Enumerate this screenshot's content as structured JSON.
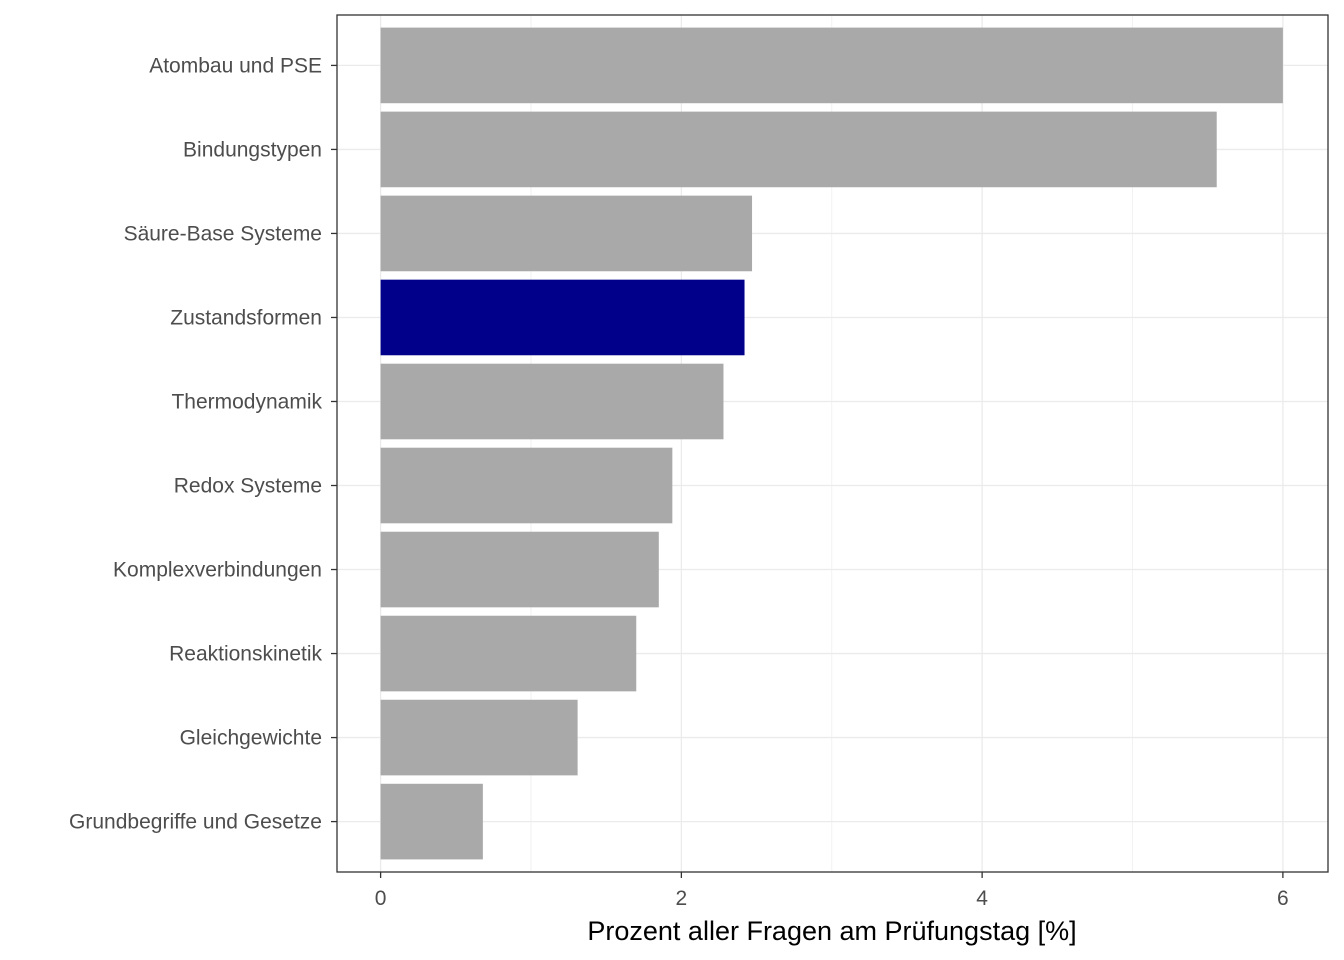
{
  "chart_data": {
    "type": "bar",
    "orientation": "horizontal",
    "categories": [
      "Atombau und PSE",
      "Bindungstypen",
      "Säure-Base Systeme",
      "Zustandsformen",
      "Thermodynamik",
      "Redox Systeme",
      "Komplexverbindungen",
      "Reaktionskinetik",
      "Gleichgewichte",
      "Grundbegriffe und Gesetze"
    ],
    "values": [
      6.0,
      5.56,
      2.47,
      2.42,
      2.28,
      1.94,
      1.85,
      1.7,
      1.31,
      0.68
    ],
    "highlight": "Zustandsformen",
    "colors": {
      "default": "#a9a9a9",
      "highlight": "#00008b"
    },
    "xlabel": "Prozent aller Fragen am Prüfungstag [%]",
    "ylabel": "",
    "xlim": [
      -0.29,
      6.3
    ],
    "xticks": [
      "0",
      "2",
      "4",
      "6"
    ],
    "grid": true,
    "legend": "none"
  }
}
